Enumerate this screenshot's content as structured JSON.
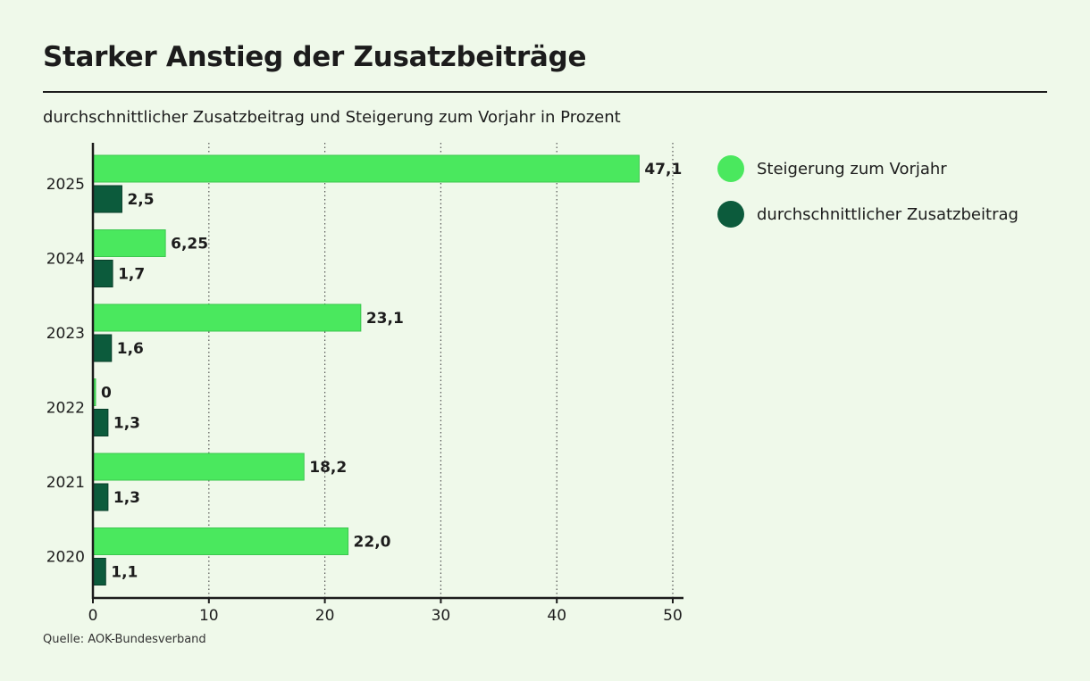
{
  "header": {
    "title": "Starker Anstieg der Zusatzbeiträge",
    "subtitle": "durchschnittlicher Zusatzbeitrag und Steigerung zum Vorjahr in Prozent"
  },
  "footer": {
    "source": "Quelle: AOK-Bundesverband"
  },
  "colors": {
    "background": "#eff9ea",
    "increase": "#4ae85e",
    "increase_outline": "#3cc74f",
    "average": "#0c5b3c",
    "average_outline": "#073d28",
    "axis": "#1c1c1c",
    "grid": "#555555"
  },
  "chart_data": {
    "type": "bar",
    "orientation": "horizontal",
    "title": "Starker Anstieg der Zusatzbeiträge",
    "subtitle": "durchschnittlicher Zusatzbeitrag und Steigerung zum Vorjahr in Prozent",
    "categories": [
      "2025",
      "2024",
      "2023",
      "2022",
      "2021",
      "2020"
    ],
    "series": [
      {
        "name": "Steigerung zum Vorjahr",
        "color": "#4ae85e",
        "values": [
          47.1,
          6.25,
          23.1,
          0,
          18.2,
          22.0
        ],
        "labels": [
          "47,1",
          "6,25",
          "23,1",
          "0",
          "18,2",
          "22,0"
        ]
      },
      {
        "name": "durchschnittlicher Zusatzbeitrag",
        "color": "#0c5b3c",
        "values": [
          2.5,
          1.7,
          1.6,
          1.3,
          1.3,
          1.1
        ],
        "labels": [
          "2,5",
          "1,7",
          "1,6",
          "1,3",
          "1,3",
          "1,1"
        ]
      }
    ],
    "xlim": [
      0,
      50
    ],
    "xticks": [
      0,
      10,
      20,
      30,
      40,
      50
    ],
    "grid": "vertical dotted",
    "legend": "right",
    "xlabel": "",
    "ylabel": ""
  }
}
